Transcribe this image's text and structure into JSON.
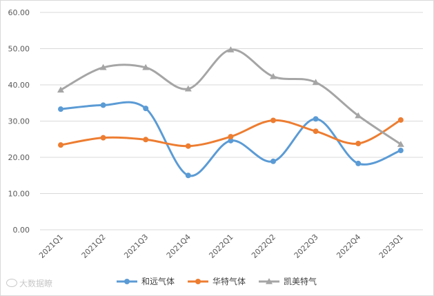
{
  "chart_data": {
    "type": "line",
    "categories": [
      "2021Q1",
      "2021Q2",
      "2021Q3",
      "2021Q4",
      "2022Q1",
      "2022Q2",
      "2022Q3",
      "2022Q4",
      "2023Q1"
    ],
    "ylim": [
      0,
      60
    ],
    "yticks": [
      "0.00",
      "10.00",
      "20.00",
      "30.00",
      "40.00",
      "50.00",
      "60.00"
    ],
    "smooth": true,
    "grid": "horizontal",
    "legend_position": "bottom",
    "series": [
      {
        "name": "和远气体",
        "color": "#5b9bd5",
        "marker": "circle",
        "values": [
          33.3,
          34.4,
          33.5,
          15.0,
          24.6,
          18.9,
          30.6,
          18.3,
          21.9
        ]
      },
      {
        "name": "华特气体",
        "color": "#ed7d31",
        "marker": "circle",
        "values": [
          23.4,
          25.4,
          24.9,
          23.1,
          25.7,
          30.2,
          27.2,
          23.8,
          30.3
        ]
      },
      {
        "name": "凯美特气",
        "color": "#a5a5a5",
        "marker": "triangle",
        "values": [
          38.6,
          44.8,
          44.8,
          38.9,
          49.7,
          42.3,
          40.7,
          31.5,
          23.6
        ]
      }
    ]
  },
  "watermark": {
    "text": "大数据瞭"
  }
}
